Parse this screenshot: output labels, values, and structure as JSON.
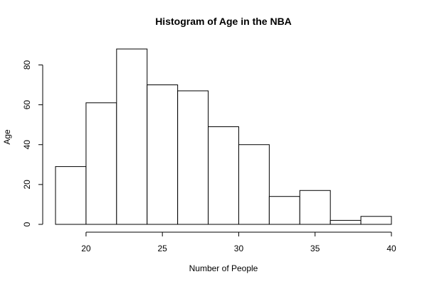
{
  "chart_data": {
    "type": "bar",
    "title": "Histogram of Age in the NBA",
    "xlabel": "Number of People",
    "ylabel": "Age",
    "bin_edges": [
      18,
      20,
      22,
      24,
      26,
      28,
      30,
      32,
      34,
      36,
      38,
      40
    ],
    "values": [
      29,
      61,
      88,
      70,
      67,
      49,
      40,
      14,
      17,
      2,
      4
    ],
    "xlim": [
      18,
      40
    ],
    "ylim": [
      0,
      88
    ],
    "xticks": [
      20,
      25,
      30,
      35,
      40
    ],
    "yticks": [
      0,
      20,
      40,
      60,
      80
    ],
    "grid": false,
    "bar_fill": "#ffffff",
    "bar_stroke": "#000000"
  }
}
